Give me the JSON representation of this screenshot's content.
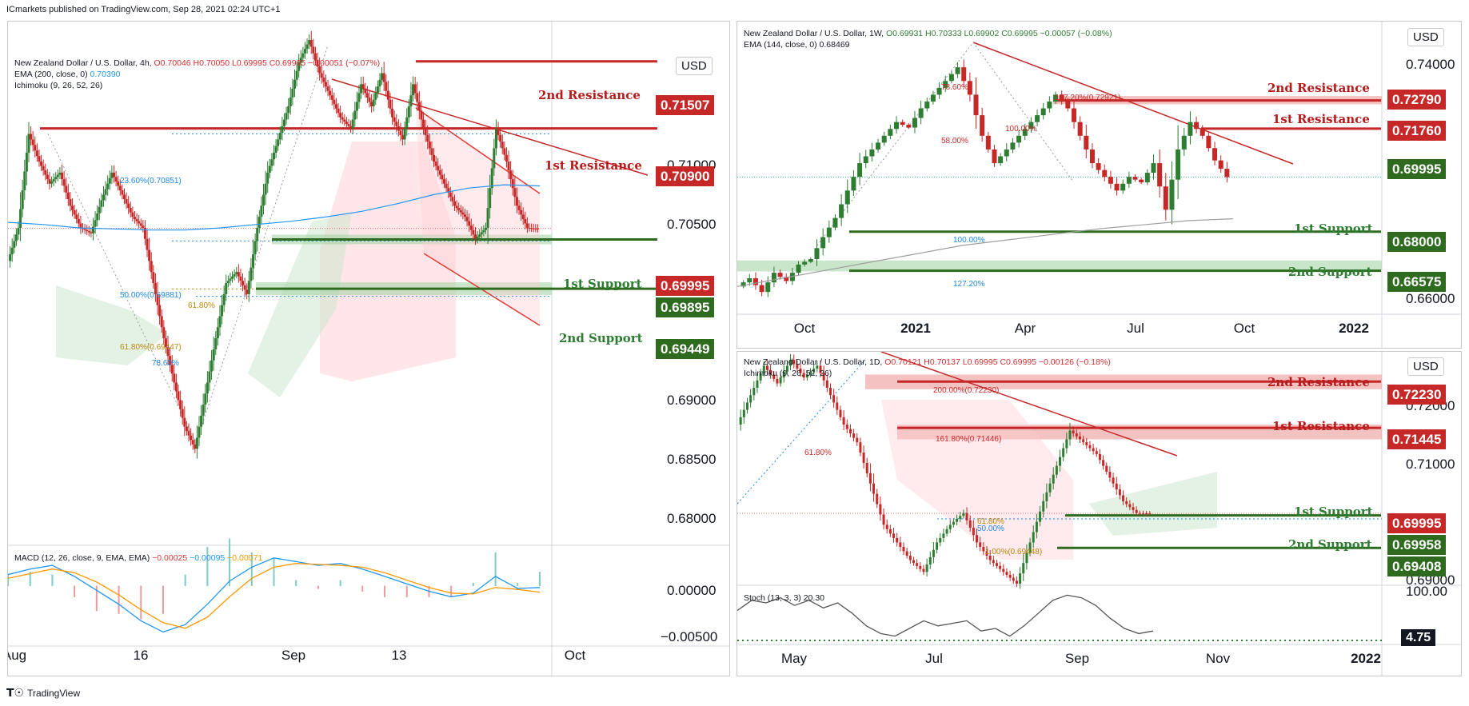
{
  "header": {
    "text": "ICmarkets published on TradingView.com, Sep 28, 2021 02:24 UTC+1"
  },
  "footer": {
    "logo_icon": "tradingview-logo-icon",
    "text": "TradingView"
  },
  "colors": {
    "resistance": "#c62828",
    "support": "#2e6b1e",
    "bull": "#2e7d32",
    "bear": "#c62828",
    "ema": "#2196f3"
  },
  "left": {
    "symbol": "New Zealand Dollar / U.S. Dollar, 4h,",
    "ohlc": "O0.70046  H0.70050  L0.69995  C0.69995  −0.00051 (−0.07%)",
    "ema_label": "EMA (200, close, 0)",
    "ema_value": "0.70390",
    "ichimoku": "Ichimoku (9, 26, 52, 26)",
    "currency": "USD",
    "price_ticks": [
      "0.71000",
      "0.70500",
      "0.69000",
      "0.68500",
      "0.68000"
    ],
    "macd_ticks": [
      "0.00000",
      "−0.00500"
    ],
    "x_ticks": [
      "Aug",
      "16",
      "Sep",
      "13",
      "Oct"
    ],
    "macd_label": "MACD (12, 26, close, 9, EMA, EMA)",
    "macd_v1": "−0.00025",
    "macd_v2": "−0.00095",
    "macd_v3": "−0.00071",
    "fibs": [
      "23.60%(0.70851)",
      "50.00%(0.69881)",
      "61.80%",
      "61.80%(0.69447)",
      "78.60%"
    ],
    "levels": {
      "r2": {
        "label": "2nd Resistance",
        "price": "0.71507"
      },
      "r1": {
        "label": "1st Resistance",
        "price": "0.70900"
      },
      "current": "0.69995",
      "s1": {
        "label": "1st Support",
        "price": "0.69895"
      },
      "s2": {
        "label": "2nd Support",
        "price": "0.69449"
      }
    }
  },
  "right_top": {
    "symbol": "New Zealand Dollar / U.S. Dollar, 1W,",
    "ohlc": "O0.69931  H0.70333  L0.69902  C0.69995  −0.00057 (−0.08%)",
    "ema_label": "EMA (144, close, 0)",
    "ema_value": "0.68469",
    "currency": "USD",
    "price_ticks": [
      "0.74000",
      "0.66000"
    ],
    "x_ticks": [
      "Oct",
      "2021",
      "Apr",
      "Jul",
      "Oct",
      "2022"
    ],
    "fibs": [
      "78.60%",
      "127.20%(0.72921)",
      "100.00%",
      "58.00%",
      "100.00%",
      "127.20%"
    ],
    "levels": {
      "r2": {
        "label": "2nd Resistance",
        "price": "0.72790"
      },
      "r1": {
        "label": "1st Resistance",
        "price": "0.71760"
      },
      "current": "0.69995",
      "s1": {
        "label": "1st Support",
        "price": "0.68000"
      },
      "s2": {
        "label": "2nd Support",
        "price": "0.66575"
      }
    }
  },
  "right_bottom": {
    "symbol": "New Zealand Dollar / U.S. Dollar, 1D,",
    "ohlc": "O0.70121  H0.70137  L0.69995  C0.69995  −0.00126 (−0.18%)",
    "ichimoku": "Ichimoku (9, 26, 52, 26)",
    "currency": "USD",
    "price_ticks": [
      "0.72000",
      "0.71000",
      "0.69000"
    ],
    "stoch_ticks": [
      "100.00"
    ],
    "stoch_label": "Stoch (13, 3, 3)",
    "stoch_value": "20.30",
    "stoch_tag": "4.75",
    "x_ticks": [
      "May",
      "Jul",
      "Sep",
      "Nov",
      "2022"
    ],
    "fibs": [
      "200.00%(0.72230)",
      "161.80%(0.71446)",
      "61.80%",
      "61.80%",
      "50.00%",
      "1.00%(0.69448)"
    ],
    "levels": {
      "r2": {
        "label": "2nd Resistance",
        "price": "0.72230"
      },
      "r1": {
        "label": "1st Resistance",
        "price": "0.71445"
      },
      "current": "0.69995",
      "s1": {
        "label": "1st Support",
        "price": "0.69958"
      },
      "s2": {
        "label": "2nd Support",
        "price": "0.69408"
      }
    }
  },
  "chart_data": [
    {
      "type": "candlestick",
      "pair": "NZD/USD",
      "timeframe": "4h",
      "ylim": [
        0.6785,
        0.7165
      ],
      "x": [
        "Aug",
        "16",
        "Sep",
        "13",
        "Oct"
      ],
      "price_path": [
        0.697,
        0.7,
        0.7085,
        0.706,
        0.704,
        0.705,
        0.702,
        0.7,
        0.6995,
        0.7025,
        0.705,
        0.703,
        0.701,
        0.7,
        0.695,
        0.69,
        0.686,
        0.682,
        0.68,
        0.685,
        0.69,
        0.695,
        0.696,
        0.694,
        0.7,
        0.705,
        0.708,
        0.711,
        0.715,
        0.717,
        0.714,
        0.712,
        0.71,
        0.709,
        0.713,
        0.711,
        0.714,
        0.71,
        0.708,
        0.713,
        0.709,
        0.706,
        0.704,
        0.702,
        0.701,
        0.699,
        0.7,
        0.709,
        0.706,
        0.702,
        0.7,
        0.6999
      ],
      "ema200_path": [
        0.7005,
        0.7003,
        0.7,
        0.6999,
        0.6998,
        0.6998,
        0.7,
        0.7003,
        0.7006,
        0.701,
        0.7015,
        0.7022,
        0.703,
        0.7036,
        0.7039,
        0.7038
      ],
      "macd_path": [
        0.0012,
        0.0018,
        0.0022,
        0.001,
        -0.0005,
        -0.002,
        -0.0038,
        -0.005,
        -0.0042,
        -0.002,
        0.0005,
        0.002,
        0.003,
        0.0026,
        0.0022,
        0.0024,
        0.0018,
        0.001,
        0.0002,
        -0.0006,
        -0.0012,
        -0.0008,
        0.001,
        -0.0003,
        -0.0002
      ],
      "signal_path": [
        0.0008,
        0.0013,
        0.0018,
        0.0014,
        0.0004,
        -0.001,
        -0.0026,
        -0.004,
        -0.0046,
        -0.0034,
        -0.0012,
        0.0008,
        0.002,
        0.0024,
        0.0023,
        0.0022,
        0.002,
        0.0014,
        0.0006,
        -0.0002,
        -0.0008,
        -0.0009,
        -0.0002,
        -0.0004,
        -0.0007
      ],
      "levels": {
        "r2": 0.71507,
        "r1": 0.709,
        "current": 0.69995,
        "s1": 0.69895,
        "s2": 0.69449
      }
    },
    {
      "type": "candlestick",
      "pair": "NZD/USD",
      "timeframe": "1W",
      "ylim": [
        0.656,
        0.745
      ],
      "x": [
        "Oct",
        "2021",
        "Apr",
        "Jul",
        "Oct",
        "2022"
      ],
      "price_path": [
        0.66,
        0.663,
        0.658,
        0.665,
        0.662,
        0.668,
        0.67,
        0.678,
        0.685,
        0.695,
        0.705,
        0.71,
        0.715,
        0.72,
        0.718,
        0.725,
        0.73,
        0.735,
        0.74,
        0.73,
        0.715,
        0.705,
        0.71,
        0.715,
        0.72,
        0.725,
        0.73,
        0.725,
        0.715,
        0.705,
        0.7,
        0.695,
        0.7,
        0.698,
        0.705,
        0.688,
        0.71,
        0.72,
        0.715,
        0.706,
        0.6999
      ],
      "ema144_path": [
        0.66,
        0.663,
        0.666,
        0.669,
        0.672,
        0.675,
        0.677,
        0.679,
        0.681,
        0.6825,
        0.684,
        0.6847
      ],
      "levels": {
        "r2": 0.7279,
        "r1": 0.7176,
        "current": 0.69995,
        "s1": 0.68,
        "s2": 0.66575
      }
    },
    {
      "type": "candlestick",
      "pair": "NZD/USD",
      "timeframe": "1D",
      "ylim": [
        0.688,
        0.726
      ],
      "x": [
        "May",
        "Jul",
        "Sep",
        "Nov",
        "2022"
      ],
      "price_path": [
        0.715,
        0.72,
        0.725,
        0.722,
        0.726,
        0.723,
        0.725,
        0.72,
        0.715,
        0.712,
        0.705,
        0.698,
        0.695,
        0.692,
        0.69,
        0.695,
        0.698,
        0.7,
        0.695,
        0.692,
        0.69,
        0.688,
        0.695,
        0.702,
        0.708,
        0.714,
        0.712,
        0.71,
        0.706,
        0.702,
        0.7,
        0.6999
      ],
      "stoch_path": [
        60,
        80,
        75,
        85,
        70,
        80,
        65,
        75,
        55,
        30,
        15,
        10,
        25,
        40,
        30,
        35,
        40,
        20,
        25,
        10,
        30,
        55,
        80,
        90,
        85,
        70,
        45,
        25,
        15,
        20
      ],
      "levels": {
        "r2": 0.7223,
        "r1": 0.71445,
        "current": 0.69995,
        "s1": 0.69958,
        "s2": 0.69408
      }
    }
  ]
}
